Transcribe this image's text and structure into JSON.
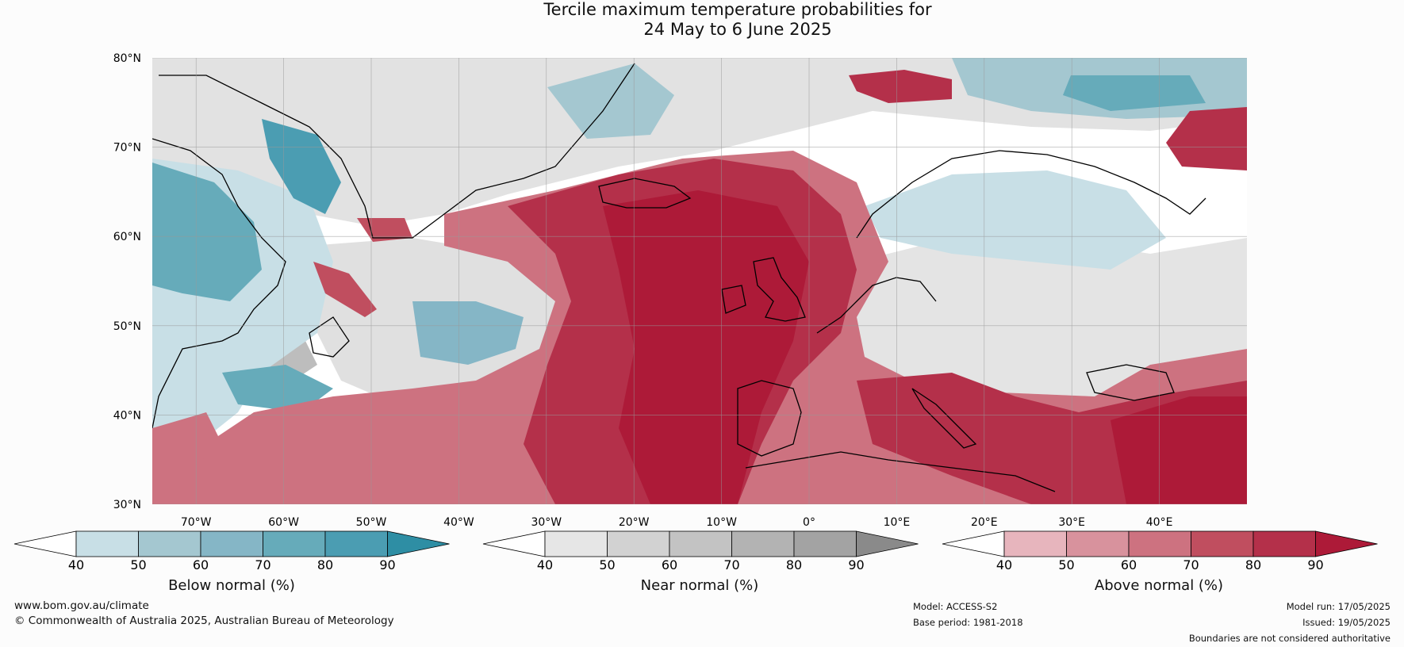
{
  "title": {
    "line1": "Tercile maximum temperature probabilities for",
    "line2": "24 May to 6 June 2025"
  },
  "map": {
    "lat_labels": [
      "80°N",
      "70°N",
      "60°N",
      "50°N",
      "40°N",
      "30°N"
    ],
    "lon_labels": [
      "70°W",
      "60°W",
      "50°W",
      "40°W",
      "30°W",
      "20°W",
      "10°W",
      "0°",
      "10°E",
      "20°E",
      "30°E",
      "40°E"
    ]
  },
  "colorbars": [
    {
      "label": "Below normal (%)",
      "ticks": [
        "40",
        "50",
        "60",
        "70",
        "80",
        "90"
      ],
      "colors": [
        "#ffffff",
        "#c8dfe6",
        "#a4c7d0",
        "#85b6c6",
        "#66abba",
        "#4b9db2",
        "#2e8ea4"
      ]
    },
    {
      "label": "Near normal (%)",
      "ticks": [
        "40",
        "50",
        "60",
        "70",
        "80",
        "90"
      ],
      "colors": [
        "#ffffff",
        "#e6e6e6",
        "#d2d2d2",
        "#c3c3c3",
        "#b3b3b3",
        "#a3a3a3",
        "#8a8a8a"
      ]
    },
    {
      "label": "Above normal (%)",
      "ticks": [
        "40",
        "50",
        "60",
        "70",
        "80",
        "90"
      ],
      "colors": [
        "#ffffff",
        "#e7b5bd",
        "#d8929d",
        "#cd7280",
        "#c04e5f",
        "#b4304a",
        "#ad1a38"
      ]
    }
  ],
  "footer": {
    "website": "www.bom.gov.au/climate",
    "copyright": "© Commonwealth of Australia 2025, Australian Bureau of Meteorology",
    "model": "Model: ACCESS-S2",
    "base_period": "Base period: 1981-2018",
    "model_run": "Model run: 17/05/2025",
    "issued": "Issued: 19/05/2025",
    "disclaimer": "Boundaries are not considered authoritative"
  }
}
